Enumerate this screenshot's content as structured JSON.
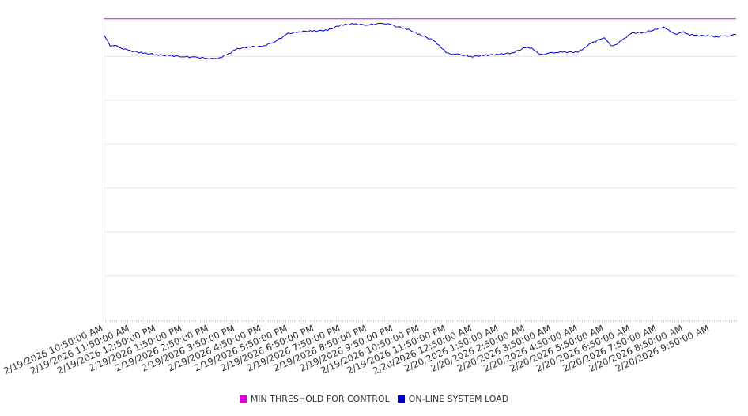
{
  "chart_data": {
    "type": "line",
    "title": "",
    "xlabel": "",
    "ylabel": "",
    "grid": true,
    "legend_position": "bottom",
    "x_start": "2/19/2026 10:50:00 AM",
    "x_end": "2/20/2026 10:50:00 AM",
    "x_tick_labels": [
      "2/19/2026 10:50:00 AM",
      "2/19/2026 11:50:00 AM",
      "2/19/2026 12:50:00 PM",
      "2/19/2026 1:50:00 PM",
      "2/19/2026 2:50:00 PM",
      "2/19/2026 3:50:00 PM",
      "2/19/2026 4:50:00 PM",
      "2/19/2026 5:50:00 PM",
      "2/19/2026 6:50:00 PM",
      "2/19/2026 7:50:00 PM",
      "2/19/2026 8:50:00 PM",
      "2/19/2026 9:50:00 PM",
      "2/19/2026 10:50:00 PM",
      "2/19/2026 11:50:00 PM",
      "2/20/2026 12:50:00 AM",
      "2/20/2026 1:50:00 AM",
      "2/20/2026 2:50:00 AM",
      "2/20/2026 3:50:00 AM",
      "2/20/2026 4:50:00 AM",
      "2/20/2026 5:50:00 AM",
      "2/20/2026 6:50:00 AM",
      "2/20/2026 7:50:00 AM",
      "2/20/2026 8:50:00 AM",
      "2/20/2026 9:50:00 AM"
    ],
    "ylim": [
      0,
      7
    ],
    "series": [
      {
        "name": "MIN THRESHOLD FOR CONTROL",
        "color": "#e000e0",
        "hours": [
          0,
          24
        ],
        "values": [
          6.86,
          6.86
        ]
      },
      {
        "name": "ON-LINE SYSTEM LOAD",
        "color": "#0000cc",
        "hours": [
          0,
          0.1,
          0.25,
          0.5,
          0.75,
          1.0,
          1.5,
          2.0,
          2.5,
          3.0,
          3.5,
          4.0,
          4.25,
          4.5,
          4.75,
          5.0,
          5.5,
          6.0,
          6.5,
          7.0,
          7.5,
          8.0,
          8.5,
          9.0,
          9.5,
          10.0,
          10.5,
          10.75,
          11.0,
          11.5,
          12.0,
          12.5,
          12.75,
          13.0,
          13.25,
          13.5,
          14.0,
          14.5,
          15.0,
          15.5,
          16.0,
          16.25,
          16.5,
          16.75,
          17.0,
          17.25,
          17.5,
          18.0,
          18.25,
          18.5,
          19.0,
          19.25,
          19.5,
          19.75,
          20.0,
          20.5,
          21.0,
          21.25,
          21.5,
          21.75,
          22.0,
          22.25,
          22.5,
          23.0,
          23.25,
          23.5,
          23.75,
          24.0
        ],
        "values": [
          6.5,
          6.4,
          6.25,
          6.23,
          6.18,
          6.13,
          6.08,
          6.04,
          6.02,
          6.0,
          5.98,
          5.96,
          5.94,
          6.0,
          6.06,
          6.16,
          6.22,
          6.22,
          6.34,
          6.52,
          6.57,
          6.58,
          6.6,
          6.72,
          6.74,
          6.72,
          6.75,
          6.76,
          6.7,
          6.63,
          6.5,
          6.37,
          6.25,
          6.08,
          6.06,
          6.04,
          6.0,
          6.03,
          6.05,
          6.08,
          6.2,
          6.2,
          6.05,
          6.06,
          6.08,
          6.1,
          6.1,
          6.1,
          6.2,
          6.3,
          6.44,
          6.23,
          6.3,
          6.4,
          6.53,
          6.55,
          6.62,
          6.68,
          6.56,
          6.52,
          6.55,
          6.5,
          6.48,
          6.47,
          6.45,
          6.46,
          6.48,
          6.5
        ]
      }
    ]
  }
}
